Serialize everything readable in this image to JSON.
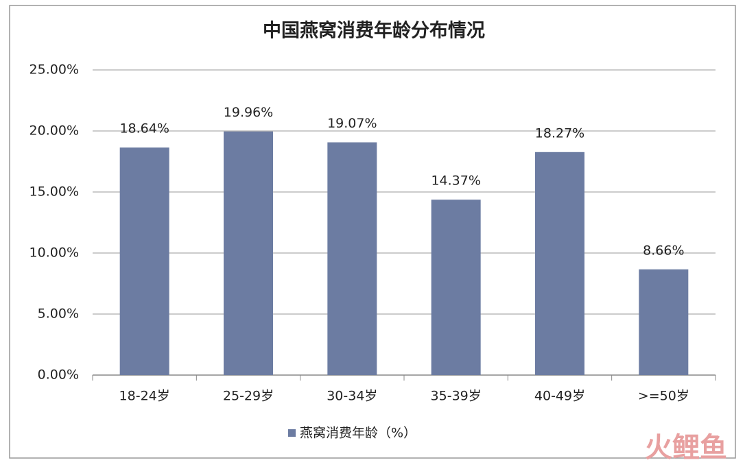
{
  "chart_data": {
    "type": "bar",
    "title": "中国燕窝消费年龄分布情况",
    "categories": [
      "18-24岁",
      "25-29岁",
      "30-34岁",
      "35-39岁",
      "40-49岁",
      ">=50岁"
    ],
    "series": [
      {
        "name": "燕窝消费年龄（%）",
        "color": "#6c7ca2",
        "values": [
          18.64,
          19.96,
          19.07,
          14.37,
          18.27,
          8.66
        ],
        "value_labels": [
          "18.64%",
          "19.96%",
          "19.07%",
          "14.37%",
          "18.27%",
          "8.66%"
        ]
      }
    ],
    "ylim": [
      0,
      25
    ],
    "yticks": [
      {
        "value": 0,
        "label": "0.00%"
      },
      {
        "value": 5,
        "label": "5.00%"
      },
      {
        "value": 10,
        "label": "10.00%"
      },
      {
        "value": 15,
        "label": "15.00%"
      },
      {
        "value": 20,
        "label": "20.00%"
      },
      {
        "value": 25,
        "label": "25.00%"
      }
    ],
    "grid": true,
    "legend": "bottom",
    "watermark": "火鲤鱼"
  }
}
